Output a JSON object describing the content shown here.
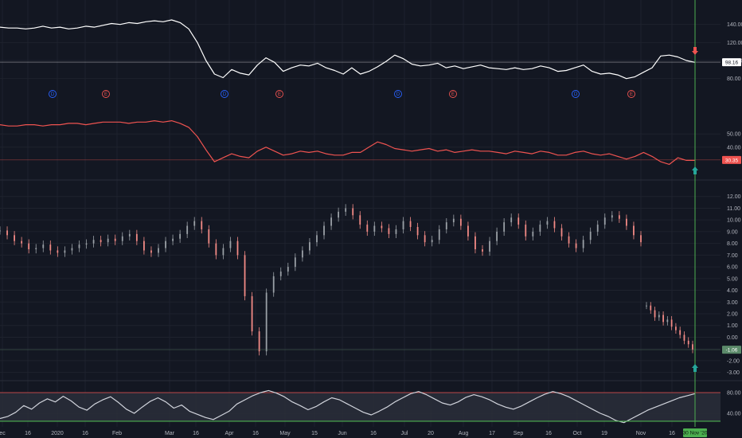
{
  "chart_data": {
    "type": "line",
    "x_axis": {
      "labels": [
        "ec",
        "16",
        "2020",
        "16",
        "Feb",
        "Mar",
        "16",
        "Apr",
        "16",
        "May",
        "15",
        "Jun",
        "16",
        "Jul",
        "20",
        "Aug",
        "17",
        "Sep",
        "16",
        "Oct",
        "19",
        "Nov",
        "16"
      ],
      "cursor_date": "30 Nov '20"
    },
    "panes": [
      {
        "id": "pane1",
        "ylim": [
          70,
          160
        ],
        "y_ticks": [
          "140.00",
          "120.00",
          "100.00",
          "80.00"
        ],
        "last_value": "98.16",
        "series_color": "#ffffff",
        "values": [
          137,
          136,
          136,
          135,
          136,
          138,
          136,
          137,
          135,
          136,
          138,
          137,
          139,
          141,
          140,
          142,
          141,
          143,
          144,
          143,
          145,
          142,
          135,
          120,
          100,
          85,
          81,
          90,
          86,
          84,
          95,
          103,
          98,
          88,
          92,
          95,
          94,
          97,
          92,
          89,
          85,
          92,
          85,
          88,
          93,
          99,
          106,
          102,
          96,
          94,
          95,
          97,
          92,
          94,
          91,
          93,
          95,
          92,
          91,
          90,
          92,
          90,
          91,
          94,
          92,
          88,
          89,
          92,
          95,
          88,
          85,
          86,
          84,
          80,
          82,
          87,
          92,
          105,
          106,
          104,
          100,
          98
        ]
      },
      {
        "id": "pane2",
        "ylim": [
          20,
          70
        ],
        "y_ticks": [
          "50.00",
          "40.00"
        ],
        "last_value": "30.35",
        "series_color": "#ef5350",
        "values": [
          57,
          56,
          56,
          57,
          57,
          56,
          57,
          57,
          58,
          58,
          57,
          58,
          59,
          59,
          59,
          58,
          59,
          59,
          60,
          59,
          60,
          58,
          55,
          48,
          38,
          29,
          32,
          35,
          33,
          32,
          37,
          40,
          37,
          34,
          35,
          37,
          36,
          37,
          35,
          34,
          34,
          36,
          36,
          40,
          44,
          42,
          39,
          38,
          37,
          38,
          39,
          37,
          38,
          36,
          37,
          38,
          37,
          37,
          36,
          35,
          37,
          36,
          35,
          37,
          36,
          34,
          34,
          36,
          37,
          35,
          34,
          35,
          33,
          31,
          33,
          36,
          33,
          29,
          27,
          32,
          30,
          30
        ]
      },
      {
        "id": "pane3",
        "type": "candlestick",
        "ylim": [
          -3.5,
          13
        ],
        "y_ticks": [
          "12.00",
          "11.00",
          "10.00",
          "9.00",
          "8.00",
          "7.00",
          "6.00",
          "5.00",
          "4.00",
          "3.00",
          "2.00",
          "1.00",
          "0.00",
          "-1.00",
          "-2.00",
          "-3.00"
        ],
        "last_value": "-1.06",
        "values": [
          9.1,
          8.7,
          8.2,
          8.0,
          7.5,
          7.6,
          7.9,
          7.4,
          7.2,
          7.4,
          7.6,
          7.9,
          8.0,
          8.3,
          8.1,
          8.4,
          8.2,
          8.6,
          8.8,
          8.2,
          7.4,
          7.2,
          7.6,
          8.2,
          8.4,
          8.8,
          9.5,
          9.9,
          9.2,
          8.0,
          7.0,
          7.6,
          8.2,
          7.0,
          3.5,
          0.5,
          -1.2,
          3.8,
          5.2,
          5.6,
          6.0,
          6.8,
          7.4,
          8.1,
          8.7,
          9.5,
          10.2,
          10.7,
          11.0,
          10.4,
          9.6,
          9.0,
          9.5,
          9.3,
          8.8,
          9.2,
          9.9,
          9.4,
          8.7,
          8.1,
          8.3,
          9.2,
          9.8,
          10.1,
          9.5,
          8.6,
          7.5,
          7.3,
          8.2,
          9.0,
          9.8,
          10.2,
          9.6,
          8.6,
          9.0,
          9.6,
          9.9,
          9.3,
          8.6,
          8.0,
          7.6,
          8.3,
          9.0,
          9.6,
          10.2,
          10.4,
          10.1,
          9.5,
          8.7,
          8.1
        ],
        "values2": [
          2.7,
          2.3,
          1.7,
          1.9,
          1.3,
          1.5,
          0.9,
          0.6,
          0.2,
          -0.3,
          -0.6,
          -1.06
        ]
      },
      {
        "id": "pane4",
        "ylim": [
          20,
          100
        ],
        "y_ticks": [
          "80.00",
          "40.00"
        ],
        "band": [
          25,
          80
        ],
        "values": [
          30,
          34,
          42,
          55,
          48,
          60,
          68,
          62,
          73,
          64,
          52,
          46,
          58,
          66,
          72,
          61,
          48,
          40,
          52,
          63,
          70,
          62,
          50,
          56,
          44,
          38,
          32,
          28,
          36,
          44,
          58,
          66,
          74,
          80,
          84,
          79,
          72,
          62,
          55,
          47,
          53,
          62,
          70,
          66,
          58,
          50,
          42,
          37,
          44,
          52,
          62,
          70,
          78,
          82,
          76,
          68,
          60,
          56,
          62,
          71,
          76,
          72,
          66,
          58,
          52,
          48,
          54,
          62,
          70,
          77,
          82,
          78,
          72,
          64,
          56,
          48,
          40,
          34,
          26,
          22,
          30,
          38,
          46,
          52,
          58,
          64,
          70,
          74,
          78
        ]
      }
    ],
    "events": [
      {
        "label": "D",
        "type": "dividend"
      },
      {
        "label": "E",
        "type": "earnings"
      },
      {
        "label": "D",
        "type": "dividend"
      },
      {
        "label": "E",
        "type": "earnings"
      },
      {
        "label": "D",
        "type": "dividend"
      },
      {
        "label": "E",
        "type": "earnings"
      },
      {
        "label": "D",
        "type": "dividend"
      },
      {
        "label": "E",
        "type": "earnings"
      }
    ],
    "colors": {
      "background": "#131722",
      "grid": "#1e222d",
      "pane1_line": "#ffffff",
      "pane2_line": "#ef5350",
      "candle_up": "#9aa0a6",
      "candle_down": "#f28a85",
      "cursor": "#4caf50",
      "arrow_up": "#26a69a",
      "arrow_down": "#ef5350",
      "band_fill": "#2a2e39",
      "dividend": "#2962ff",
      "earnings": "#ef5350"
    }
  }
}
